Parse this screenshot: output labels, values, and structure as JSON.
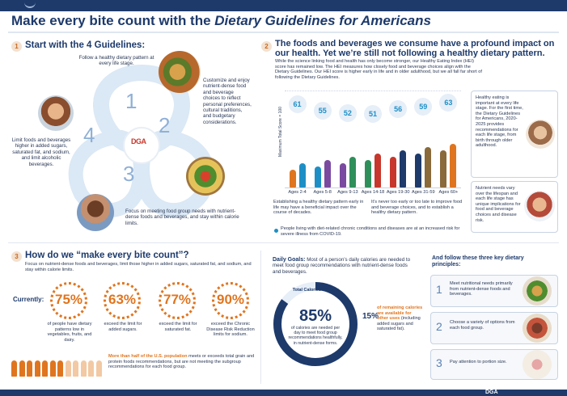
{
  "title": {
    "prefix": "Make every bite count with the ",
    "italic": "Dietary Guidelines for Americans"
  },
  "section1": {
    "num": "1",
    "heading": "Start with the 4 Guidelines:",
    "g1": "Follow a healthy dietary pattern at every life stage.",
    "g2": "Customize and enjoy nutrient-dense food and beverage choices to reflect personal preferences, cultural traditions, and budgetary considerations.",
    "g3": "Focus on meeting food group needs with nutrient-dense foods and beverages, and stay within calorie limits.",
    "g4": "Limit foods and beverages higher in added sugars, saturated fat, and sodium, and limit alcoholic beverages.",
    "n1": "1",
    "n2": "2",
    "n3": "3",
    "n4": "4",
    "center_logo": "DGA"
  },
  "section2": {
    "num": "2",
    "heading": "The foods and beverages we consume have a profound impact on our health. Yet we’re still not following a healthy dietary pattern.",
    "intro": "While the science linking food and health has only become stronger, our Healthy Eating Index (HEI) score has remained low. The HEI measures how closely food and beverage choices align with the Dietary Guidelines. Our HEI score is higher early in life and in older adulthood, but we all fall far short of following the Dietary Guidelines.",
    "yaxis": "Maximum Total Score = 100",
    "note_left": "Establishing a healthy dietary pattern early in life may have a beneficial impact over the course of decades.",
    "note_right": "It’s never too early or too late to improve food and beverage choices, and to establish a healthy dietary pattern.",
    "covid": "People living with diet-related chronic conditions and diseases are at an increased risk for severe illness from COVID-19.",
    "side1": "Healthy eating is important at every life stage. For the first time, the Dietary Guidelines for Americans, 2020-2025 provides recommendations for each life stage, from birth through older adulthood.",
    "side2": "Nutrient needs vary over the lifespan and each life stage has unique implications for food and beverage choices and disease risk."
  },
  "chart_data": {
    "type": "table",
    "categories": [
      "Ages 2-4",
      "Ages 5-8",
      "Ages 9-13",
      "Ages 14-18",
      "Ages 19-30",
      "Ages 31-59",
      "Ages 60+"
    ],
    "values": [
      61,
      55,
      52,
      51,
      56,
      59,
      63
    ],
    "ylabel": "Maximum Total Score = 100"
  },
  "section3": {
    "num": "3",
    "heading": "How do we “make every bite count”?",
    "intro": "Focus on nutrient-dense foods and beverages, limit those higher in added sugars, saturated fat, and sodium, and stay within calorie limits.",
    "currently": "Currently:",
    "stats": [
      {
        "value": "75%",
        "text": "of people have dietary patterns low in vegetables, fruits, and dairy."
      },
      {
        "value": "63%",
        "text": "exceed the limit for added sugars."
      },
      {
        "value": "77%",
        "text": "exceed the limit for saturated fat."
      },
      {
        "value": "90%",
        "text": "exceed the Chronic Disease Risk Reduction limits for sodium."
      }
    ],
    "half_bold": "More than half of the U.S. population",
    "half_rest": " meets or exceeds total grain and protein foods recommendations, but are not meeting the subgroup recommendations for each food group."
  },
  "daily": {
    "label": "Daily Goals:",
    "text": " Most of a person’s daily calories are needed to meet food group recommendations with nutrient-dense foods and beverages.",
    "donut_title": "Total Calories Per Day",
    "pct85": "85%",
    "pct85_text": "of calories are needed per day to meet food group recommendations healthfully, in nutrient-dense forms.",
    "pct15": "15%",
    "pct15_bold": "of remaining calories are available for other uses",
    "pct15_rest": " (including added sugars and saturated fat).",
    "share_needed": 0.85
  },
  "principles": {
    "heading": "And follow these three key dietary principles:",
    "items": [
      {
        "num": "1",
        "text": "Meet nutritional needs primarily from nutrient-dense foods and beverages."
      },
      {
        "num": "2",
        "text": "Choose a variety of options from each food group."
      },
      {
        "num": "3",
        "text": "Pay attention to portion size."
      }
    ]
  },
  "footer": {
    "logo": "DGA"
  },
  "colors": {
    "navy": "#1d3a6b",
    "orange": "#e0751f",
    "teal": "#1d8fc6"
  }
}
